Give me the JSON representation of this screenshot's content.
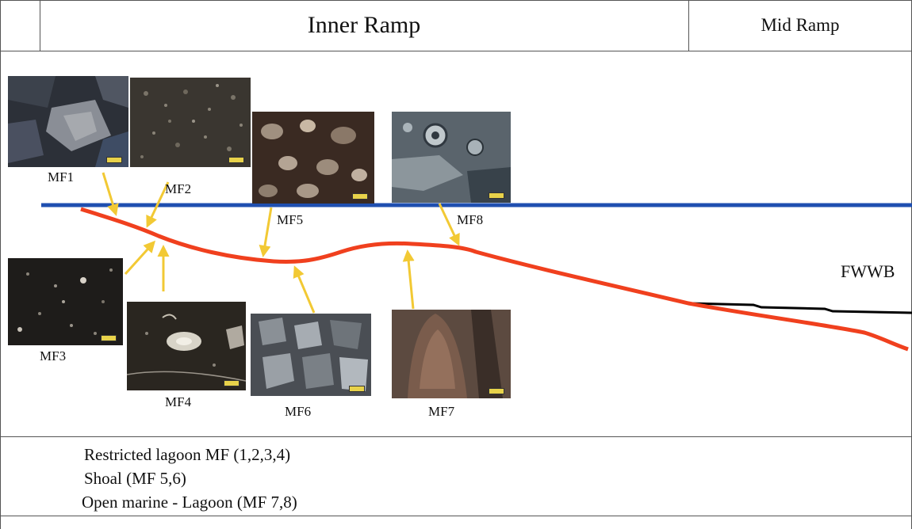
{
  "header": {
    "inner_ramp": "Inner Ramp",
    "mid_ramp": "Mid Ramp"
  },
  "facies": [
    {
      "id": "MF1",
      "label": "MF1",
      "tone": "#2c3038"
    },
    {
      "id": "MF2",
      "label": "MF2",
      "tone": "#3a3630"
    },
    {
      "id": "MF3",
      "label": "MF3",
      "tone": "#1e1c1a"
    },
    {
      "id": "MF4",
      "label": "MF4",
      "tone": "#2a2620"
    },
    {
      "id": "MF5",
      "label": "MF5",
      "tone": "#3a2a22"
    },
    {
      "id": "MF6",
      "label": "MF6",
      "tone": "#4a4e54"
    },
    {
      "id": "MF7",
      "label": "MF7",
      "tone": "#5c4a40"
    },
    {
      "id": "MF8",
      "label": "MF8",
      "tone": "#5a646c"
    }
  ],
  "fwwb_label": "FWWB",
  "legend": [
    "Restricted lagoon MF (1,2,3,4)",
    "Shoal (MF 5,6)",
    "Open marine - Lagoon (MF 7,8)"
  ],
  "colors": {
    "sea_level": "#1f4fb0",
    "profile": "#f0401e",
    "arrow": "#f2c934",
    "fwwb_line": "#000000",
    "grid": "#555555"
  }
}
